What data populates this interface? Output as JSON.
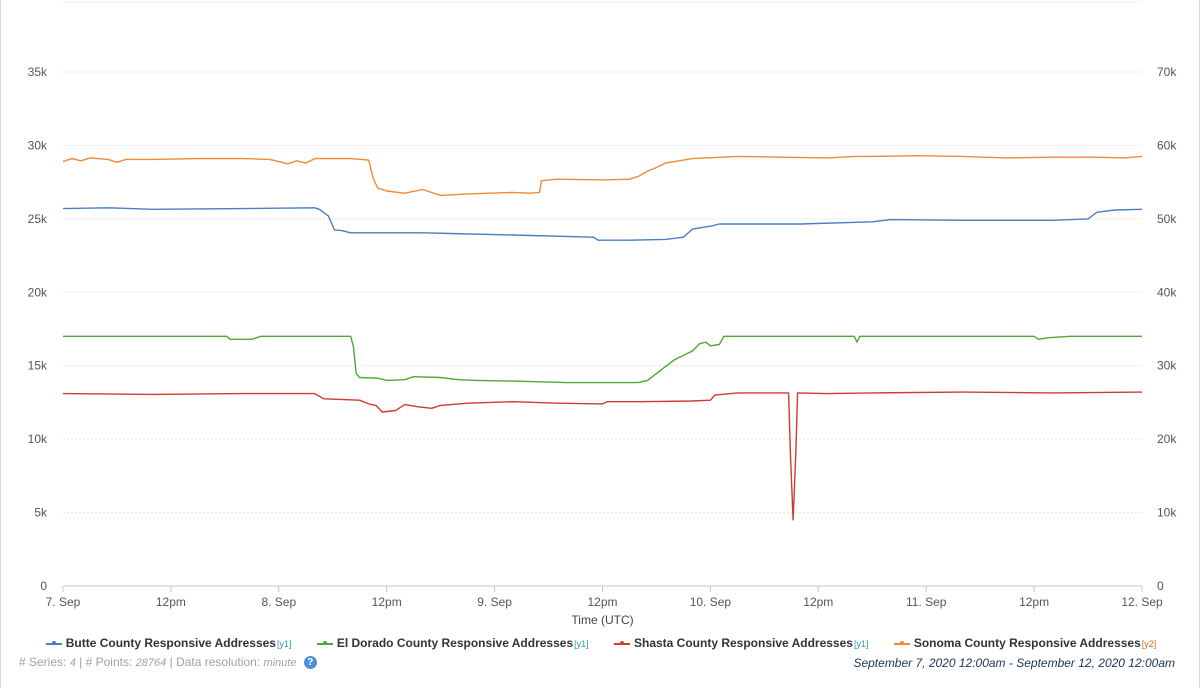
{
  "chart_data": {
    "type": "line",
    "xlabel": "Time (UTC)",
    "x_ticks": [
      "7. Sep",
      "12pm",
      "8. Sep",
      "12pm",
      "9. Sep",
      "12pm",
      "10. Sep",
      "12pm",
      "11. Sep",
      "12pm",
      "12. Sep"
    ],
    "x_range_hours": [
      0,
      120
    ],
    "y1_ticks": [
      "0",
      "5k",
      "10k",
      "15k",
      "20k",
      "25k",
      "30k",
      "35k"
    ],
    "y2_ticks": [
      "0",
      "10k",
      "20k",
      "30k",
      "40k",
      "50k",
      "60k",
      "70k"
    ],
    "y1_range": [
      0,
      35000
    ],
    "y2_range": [
      0,
      70000
    ],
    "grid": true,
    "legend_position": "bottom",
    "series": [
      {
        "name": "Butte County Responsive Addresses",
        "axis_tag": "[y1]",
        "axis": "y1",
        "color": "#4a7fc1",
        "points": [
          [
            0,
            25700
          ],
          [
            5,
            25750
          ],
          [
            10,
            25650
          ],
          [
            20,
            25700
          ],
          [
            28,
            25750
          ],
          [
            28.5,
            25650
          ],
          [
            29.5,
            25200
          ],
          [
            30.2,
            24250
          ],
          [
            31,
            24200
          ],
          [
            32,
            24050
          ],
          [
            40,
            24050
          ],
          [
            43,
            24000
          ],
          [
            50,
            23900
          ],
          [
            59,
            23750
          ],
          [
            59.5,
            23550
          ],
          [
            63,
            23550
          ],
          [
            67,
            23600
          ],
          [
            69,
            23750
          ],
          [
            70,
            24300
          ],
          [
            72,
            24500
          ],
          [
            73,
            24650
          ],
          [
            76,
            24650
          ],
          [
            82,
            24650
          ],
          [
            90,
            24800
          ],
          [
            92,
            24950
          ],
          [
            100,
            24900
          ],
          [
            110,
            24900
          ],
          [
            114,
            25000
          ],
          [
            115,
            25450
          ],
          [
            117,
            25600
          ],
          [
            120,
            25650
          ]
        ]
      },
      {
        "name": "El Dorado County Responsive Addresses",
        "axis_tag": "[y1]",
        "axis": "y1",
        "color": "#4ea836",
        "points": [
          [
            0,
            17000
          ],
          [
            10,
            17000
          ],
          [
            18.2,
            17000
          ],
          [
            18.6,
            16800
          ],
          [
            21,
            16800
          ],
          [
            22,
            17000
          ],
          [
            32,
            17000
          ],
          [
            32.3,
            16300
          ],
          [
            32.6,
            14500
          ],
          [
            33,
            14200
          ],
          [
            35,
            14150
          ],
          [
            36,
            14000
          ],
          [
            38,
            14050
          ],
          [
            39,
            14250
          ],
          [
            42,
            14200
          ],
          [
            44,
            14050
          ],
          [
            46,
            14000
          ],
          [
            50,
            13950
          ],
          [
            56,
            13850
          ],
          [
            64,
            13850
          ],
          [
            65,
            14000
          ],
          [
            66.5,
            14700
          ],
          [
            68,
            15400
          ],
          [
            70,
            16000
          ],
          [
            70.8,
            16500
          ],
          [
            71.5,
            16600
          ],
          [
            72,
            16350
          ],
          [
            73,
            16450
          ],
          [
            73.5,
            17000
          ],
          [
            80,
            17000
          ],
          [
            88,
            17000
          ],
          [
            88.3,
            16600
          ],
          [
            88.6,
            17000
          ],
          [
            100,
            17000
          ],
          [
            108,
            17000
          ],
          [
            108.5,
            16800
          ],
          [
            109.5,
            16900
          ],
          [
            112,
            17000
          ],
          [
            120,
            17000
          ]
        ]
      },
      {
        "name": "Shasta County Responsive Addresses",
        "axis_tag": "[y1]",
        "axis": "y1",
        "color": "#d13a32",
        "points": [
          [
            0,
            13100
          ],
          [
            10,
            13050
          ],
          [
            20,
            13100
          ],
          [
            28,
            13100
          ],
          [
            29,
            12750
          ],
          [
            33,
            12650
          ],
          [
            34,
            12400
          ],
          [
            34.8,
            12300
          ],
          [
            35.5,
            11850
          ],
          [
            37,
            11950
          ],
          [
            38,
            12350
          ],
          [
            39.5,
            12200
          ],
          [
            41,
            12100
          ],
          [
            42,
            12300
          ],
          [
            45,
            12450
          ],
          [
            50,
            12550
          ],
          [
            55,
            12450
          ],
          [
            60,
            12400
          ],
          [
            60.5,
            12550
          ],
          [
            64,
            12550
          ],
          [
            70,
            12600
          ],
          [
            72,
            12650
          ],
          [
            72.5,
            13000
          ],
          [
            75,
            13150
          ],
          [
            80,
            13150
          ],
          [
            80.7,
            13150
          ],
          [
            80.9,
            9000
          ],
          [
            81.2,
            4500
          ],
          [
            81.5,
            9000
          ],
          [
            81.7,
            13150
          ],
          [
            85,
            13100
          ],
          [
            90,
            13150
          ],
          [
            100,
            13200
          ],
          [
            110,
            13150
          ],
          [
            120,
            13200
          ]
        ]
      },
      {
        "name": "Sonoma County Responsive Addresses",
        "axis_tag": "[y2]",
        "axis": "y2",
        "color": "#ef8a35",
        "points": [
          [
            0,
            57800
          ],
          [
            1,
            58200
          ],
          [
            2,
            57900
          ],
          [
            3,
            58300
          ],
          [
            5,
            58100
          ],
          [
            6,
            57700
          ],
          [
            7,
            58100
          ],
          [
            10,
            58100
          ],
          [
            15,
            58200
          ],
          [
            20,
            58200
          ],
          [
            23,
            58100
          ],
          [
            25,
            57500
          ],
          [
            26,
            57900
          ],
          [
            27,
            57600
          ],
          [
            28,
            58200
          ],
          [
            32,
            58200
          ],
          [
            34,
            58000
          ],
          [
            34.5,
            55500
          ],
          [
            35,
            54200
          ],
          [
            36,
            53800
          ],
          [
            38,
            53500
          ],
          [
            40,
            54000
          ],
          [
            42,
            53200
          ],
          [
            45,
            53400
          ],
          [
            50,
            53600
          ],
          [
            52,
            53500
          ],
          [
            53,
            53600
          ],
          [
            53.2,
            55200
          ],
          [
            55,
            55400
          ],
          [
            60,
            55300
          ],
          [
            63,
            55400
          ],
          [
            64,
            55800
          ],
          [
            65,
            56500
          ],
          [
            66,
            57000
          ],
          [
            67,
            57600
          ],
          [
            70,
            58200
          ],
          [
            75,
            58500
          ],
          [
            80,
            58400
          ],
          [
            85,
            58300
          ],
          [
            88,
            58500
          ],
          [
            90,
            58500
          ],
          [
            95,
            58600
          ],
          [
            100,
            58500
          ],
          [
            105,
            58300
          ],
          [
            110,
            58400
          ],
          [
            115,
            58400
          ],
          [
            118,
            58300
          ],
          [
            120,
            58500
          ]
        ]
      }
    ]
  },
  "footer": {
    "series_label": "# Series:",
    "series_count": "4",
    "points_label": "# Points:",
    "points_count": "28764",
    "resolution_label": "Data resolution:",
    "resolution_value": "minute",
    "help_icon": "?",
    "date_range": "September 7, 2020 12:00am - September 12, 2020 12:00am"
  }
}
